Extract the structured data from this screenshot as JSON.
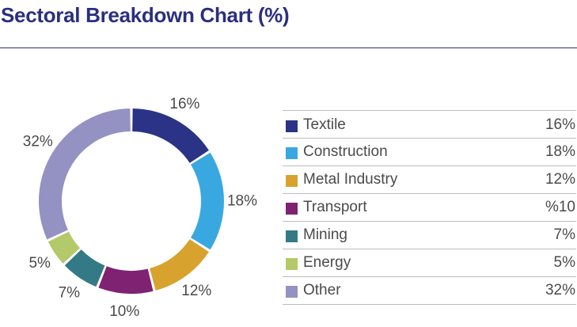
{
  "title": "Sectoral Breakdown Chart (%)",
  "colors": {
    "title": "#2a2f7f",
    "text": "#4a4a4a",
    "rule": "#bcbcbc"
  },
  "chart_data": {
    "type": "pie",
    "variant": "donut",
    "title": "Sectoral Breakdown Chart (%)",
    "categories": [
      "Textile",
      "Construction",
      "Metal Industry",
      "Transport",
      "Mining",
      "Energy",
      "Other"
    ],
    "values": [
      16,
      18,
      12,
      10,
      7,
      5,
      32
    ],
    "slice_labels": [
      "16%",
      "18%",
      "12%",
      "10%",
      "7%",
      "5%",
      "32%"
    ],
    "colors": [
      "#2b3386",
      "#3aa8e0",
      "#d8a22e",
      "#7f2272",
      "#347a86",
      "#b3c96a",
      "#9491c3"
    ],
    "legend": {
      "placement": "right",
      "entries": [
        {
          "name": "Textile",
          "value": "16%",
          "color": "#2b3386"
        },
        {
          "name": "Construction",
          "value": "18%",
          "color": "#3aa8e0"
        },
        {
          "name": "Metal Industry",
          "value": "12%",
          "color": "#d8a22e"
        },
        {
          "name": "Transport",
          "value": "%10",
          "color": "#7f2272"
        },
        {
          "name": "Mining",
          "value": "7%",
          "color": "#347a86"
        },
        {
          "name": "Energy",
          "value": "5%",
          "color": "#b3c96a"
        },
        {
          "name": "Other",
          "value": "32%",
          "color": "#9491c3"
        }
      ]
    }
  }
}
